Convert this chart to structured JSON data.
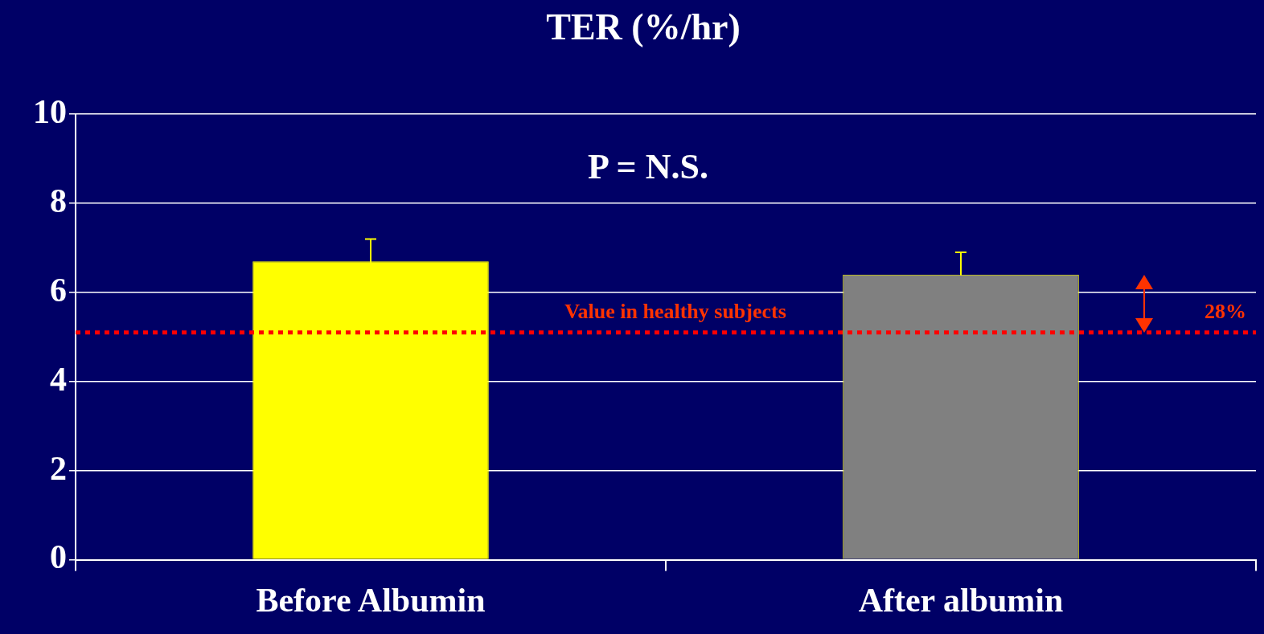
{
  "chart_data": {
    "type": "bar",
    "title": "TER (%/hr)",
    "categories": [
      "Before Albumin",
      "After albumin"
    ],
    "values": [
      6.7,
      6.4
    ],
    "colors": [
      "#ffff00",
      "#808080"
    ],
    "errors": [
      0.5,
      0.5
    ],
    "ylim": [
      0,
      10
    ],
    "yticks": [
      0,
      2,
      4,
      6,
      8,
      10
    ],
    "grid": "y",
    "legend": false,
    "ref_lines": [
      {
        "axis": "y",
        "value": 5.1,
        "label": "Value in healthy subjects",
        "color": "#ff0000",
        "line_style": "dotted"
      }
    ],
    "annotations": [
      "P = N.S.",
      "28%"
    ]
  }
}
